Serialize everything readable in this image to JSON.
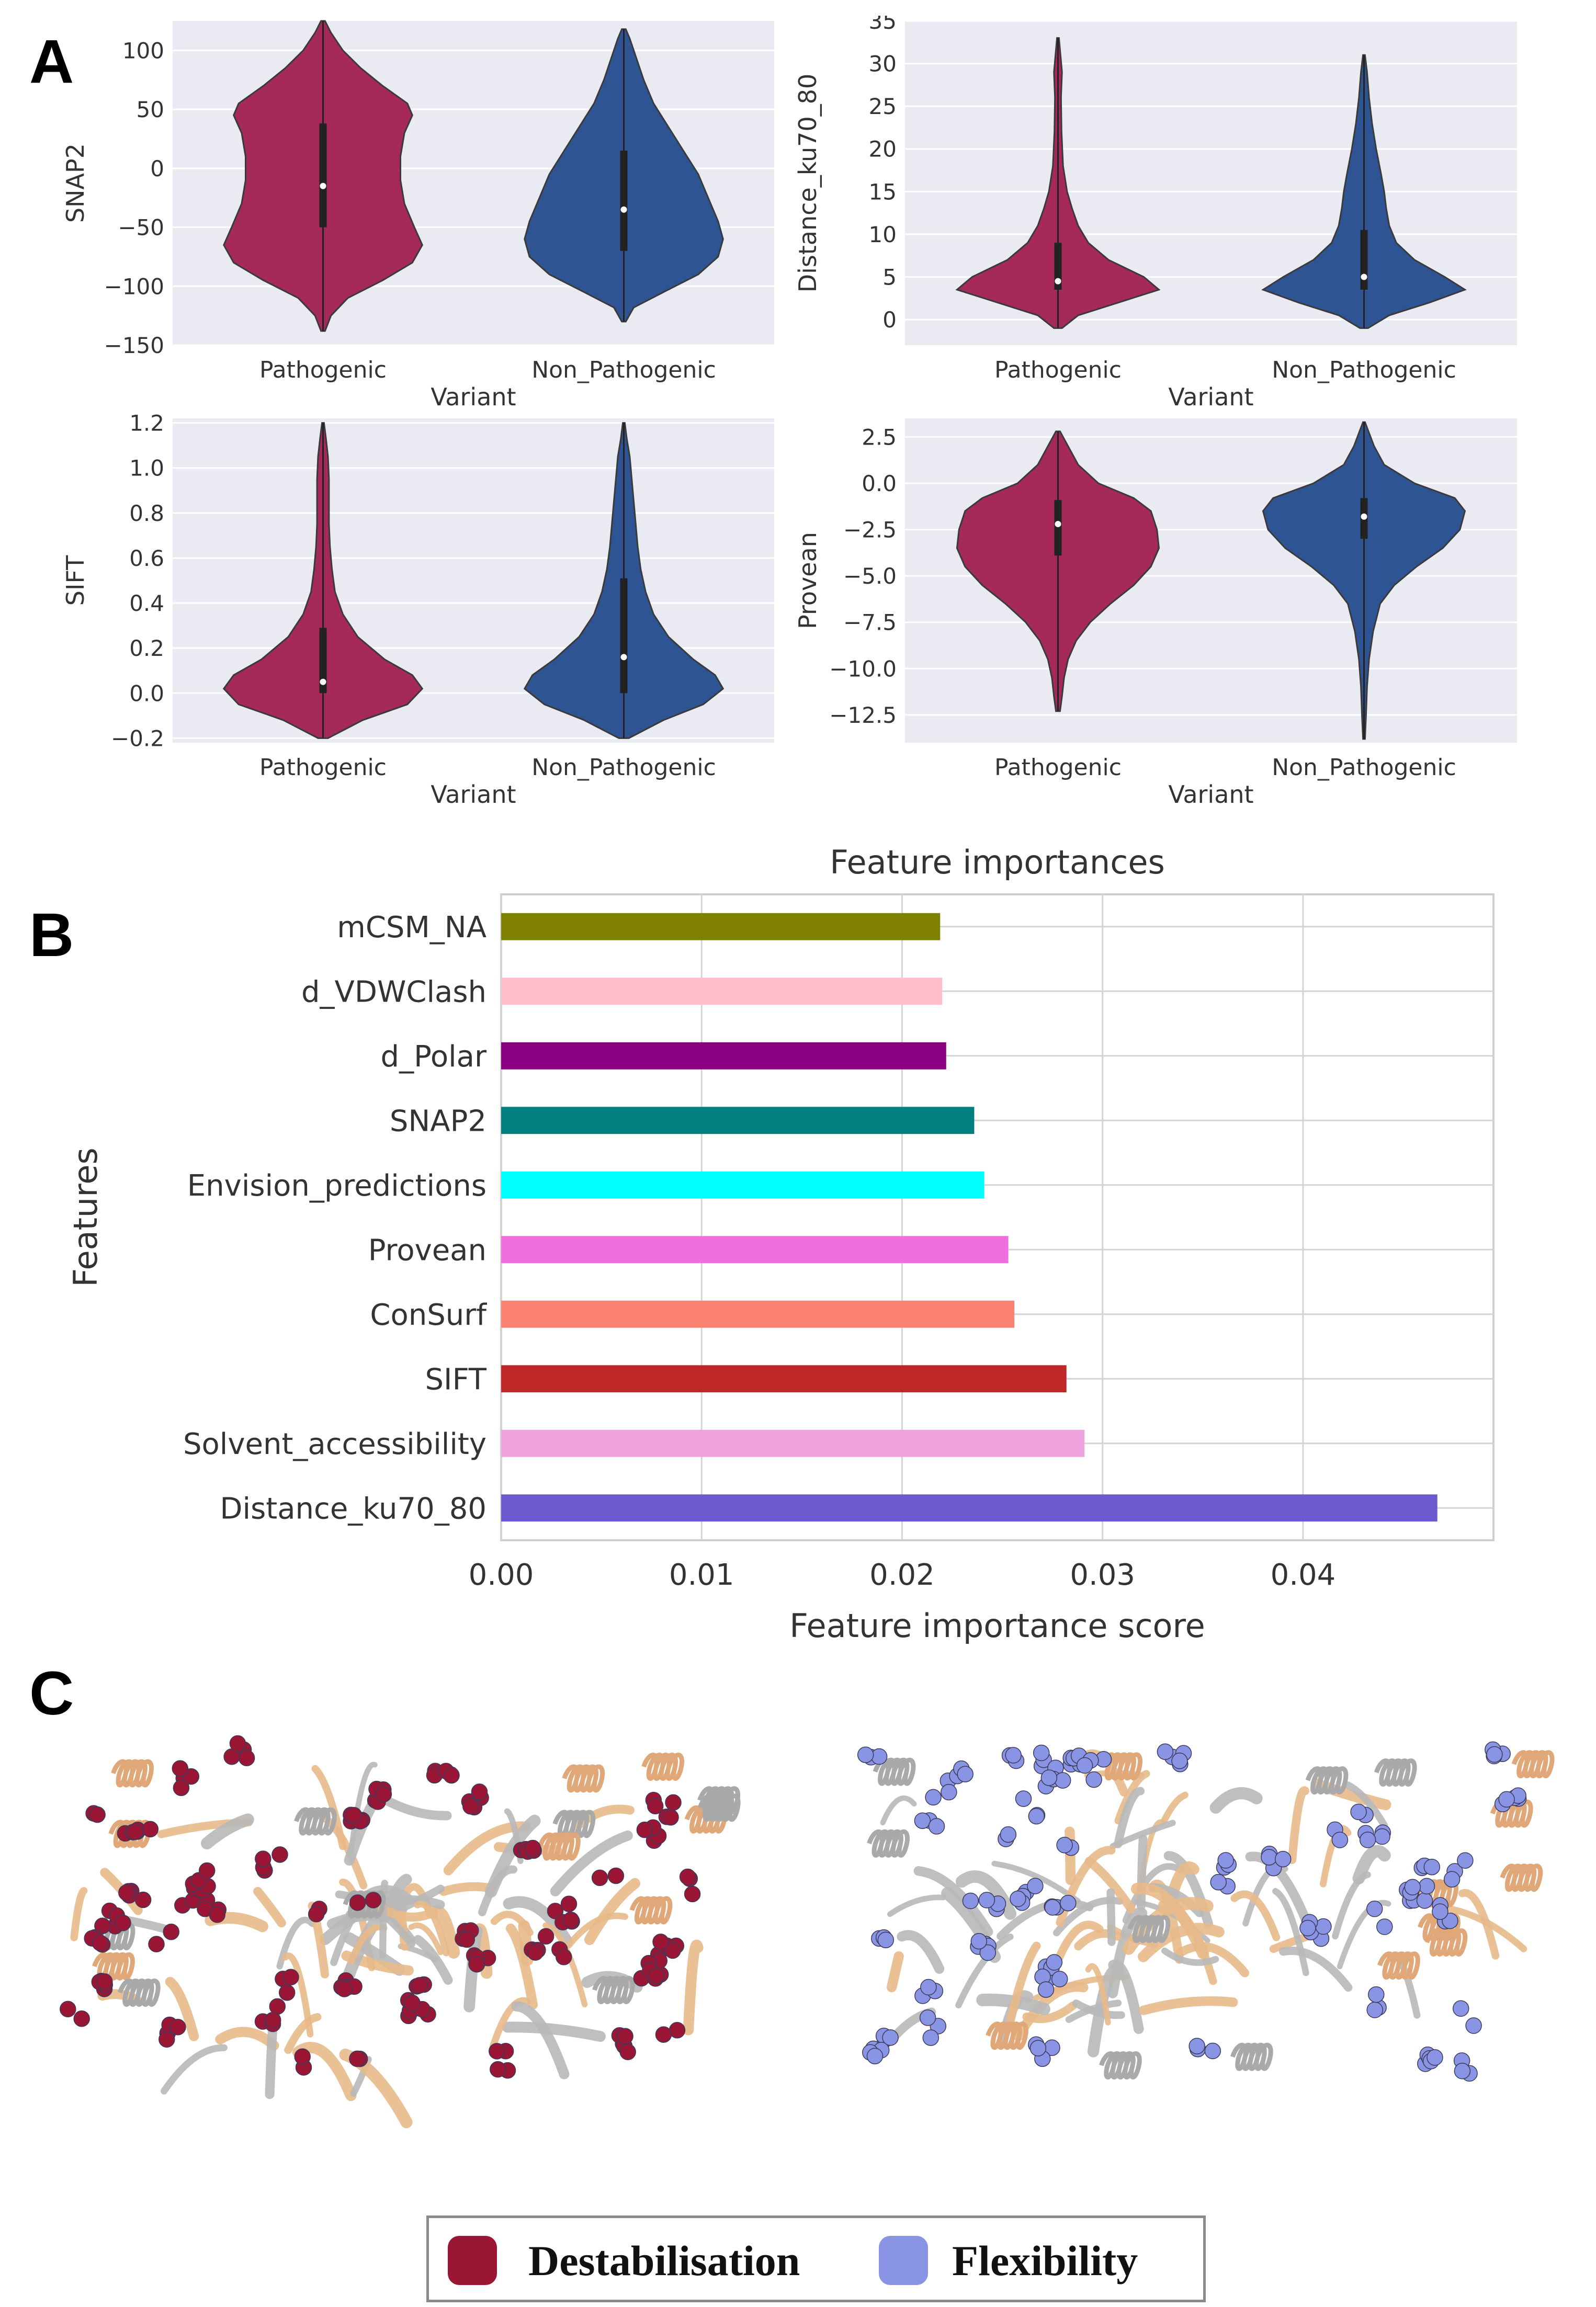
{
  "figure": {
    "panel_letters": [
      "A",
      "B",
      "C"
    ]
  },
  "chart_data": [
    {
      "type": "violin",
      "panel": "A",
      "ylabel": "SNAP2",
      "xlabel": "Variant",
      "categories": [
        "Pathogenic",
        "Non_Pathogenic"
      ],
      "ylim": [
        -150,
        125
      ],
      "yticks": [
        -150,
        -100,
        -50,
        0,
        50,
        100
      ],
      "ytick_labels": [
        "−150",
        "−100",
        "−50",
        "0",
        "50",
        "100"
      ],
      "series": [
        {
          "name": "Pathogenic",
          "color": "#a52a5a",
          "min": -138,
          "max": 125,
          "q1": -50,
          "median": -15,
          "q3": 38,
          "density": [
            [
              -138,
              0.02
            ],
            [
              -125,
              0.08
            ],
            [
              -110,
              0.25
            ],
            [
              -95,
              0.6
            ],
            [
              -80,
              0.9
            ],
            [
              -65,
              1.0
            ],
            [
              -50,
              0.92
            ],
            [
              -30,
              0.82
            ],
            [
              -10,
              0.78
            ],
            [
              10,
              0.78
            ],
            [
              30,
              0.82
            ],
            [
              45,
              0.9
            ],
            [
              55,
              0.85
            ],
            [
              70,
              0.6
            ],
            [
              85,
              0.38
            ],
            [
              100,
              0.2
            ],
            [
              115,
              0.08
            ],
            [
              125,
              0.02
            ]
          ]
        },
        {
          "name": "Non_Pathogenic",
          "color": "#2f5494",
          "min": -130,
          "max": 118,
          "q1": -70,
          "median": -35,
          "q3": 15,
          "density": [
            [
              -130,
              0.02
            ],
            [
              -118,
              0.1
            ],
            [
              -105,
              0.4
            ],
            [
              -90,
              0.75
            ],
            [
              -75,
              0.95
            ],
            [
              -60,
              1.0
            ],
            [
              -45,
              0.95
            ],
            [
              -25,
              0.85
            ],
            [
              -5,
              0.75
            ],
            [
              15,
              0.6
            ],
            [
              35,
              0.45
            ],
            [
              55,
              0.3
            ],
            [
              75,
              0.2
            ],
            [
              95,
              0.12
            ],
            [
              110,
              0.06
            ],
            [
              118,
              0.02
            ]
          ]
        }
      ]
    },
    {
      "type": "violin",
      "panel": "A",
      "ylabel": "Distance_ku70_80",
      "xlabel": "Variant",
      "categories": [
        "Pathogenic",
        "Non_Pathogenic"
      ],
      "ylim": [
        -3,
        35
      ],
      "yticks": [
        0,
        5,
        10,
        15,
        20,
        25,
        30,
        35
      ],
      "ytick_labels": [
        "0",
        "5",
        "10",
        "15",
        "20",
        "25",
        "30",
        "35"
      ],
      "series": [
        {
          "name": "Pathogenic",
          "color": "#a52a5a",
          "min": -1,
          "max": 33,
          "q1": 3.5,
          "median": 4.5,
          "q3": 9,
          "density": [
            [
              -1,
              0.04
            ],
            [
              0.5,
              0.2
            ],
            [
              2,
              0.6
            ],
            [
              3.5,
              1.0
            ],
            [
              5,
              0.85
            ],
            [
              7,
              0.5
            ],
            [
              9,
              0.3
            ],
            [
              11,
              0.2
            ],
            [
              13,
              0.14
            ],
            [
              15,
              0.09
            ],
            [
              18,
              0.05
            ],
            [
              22,
              0.035
            ],
            [
              26,
              0.03
            ],
            [
              29,
              0.04
            ],
            [
              31,
              0.025
            ],
            [
              33,
              0.01
            ]
          ]
        },
        {
          "name": "Non_Pathogenic",
          "color": "#2f5494",
          "min": -1,
          "max": 31,
          "q1": 3.5,
          "median": 5,
          "q3": 10.5,
          "density": [
            [
              -1,
              0.04
            ],
            [
              0.5,
              0.25
            ],
            [
              2,
              0.65
            ],
            [
              3.5,
              1.0
            ],
            [
              5,
              0.8
            ],
            [
              7,
              0.5
            ],
            [
              9,
              0.32
            ],
            [
              11,
              0.25
            ],
            [
              13,
              0.22
            ],
            [
              15,
              0.2
            ],
            [
              17,
              0.17
            ],
            [
              20,
              0.12
            ],
            [
              23,
              0.08
            ],
            [
              26,
              0.05
            ],
            [
              29,
              0.03
            ],
            [
              31,
              0.01
            ]
          ]
        }
      ]
    },
    {
      "type": "violin",
      "panel": "A",
      "ylabel": "SIFT",
      "xlabel": "Variant",
      "categories": [
        "Pathogenic",
        "Non_Pathogenic"
      ],
      "ylim": [
        -0.22,
        1.22
      ],
      "yticks": [
        -0.2,
        0.0,
        0.2,
        0.4,
        0.6,
        0.8,
        1.0,
        1.2
      ],
      "ytick_labels": [
        "−0.2",
        "0.0",
        "0.2",
        "0.4",
        "0.6",
        "0.8",
        "1.0",
        "1.2"
      ],
      "series": [
        {
          "name": "Pathogenic",
          "color": "#a52a5a",
          "min": -0.2,
          "max": 1.2,
          "q1": 0.0,
          "median": 0.05,
          "q3": 0.29,
          "density": [
            [
              -0.2,
              0.05
            ],
            [
              -0.12,
              0.4
            ],
            [
              -0.05,
              0.85
            ],
            [
              0.02,
              1.0
            ],
            [
              0.08,
              0.9
            ],
            [
              0.15,
              0.62
            ],
            [
              0.25,
              0.35
            ],
            [
              0.35,
              0.2
            ],
            [
              0.45,
              0.12
            ],
            [
              0.55,
              0.09
            ],
            [
              0.65,
              0.07
            ],
            [
              0.75,
              0.06
            ],
            [
              0.85,
              0.06
            ],
            [
              0.95,
              0.06
            ],
            [
              1.05,
              0.05
            ],
            [
              1.13,
              0.03
            ],
            [
              1.2,
              0.01
            ]
          ]
        },
        {
          "name": "Non_Pathogenic",
          "color": "#2f5494",
          "min": -0.2,
          "max": 1.2,
          "q1": 0.0,
          "median": 0.16,
          "q3": 0.51,
          "density": [
            [
              -0.2,
              0.05
            ],
            [
              -0.12,
              0.4
            ],
            [
              -0.05,
              0.8
            ],
            [
              0.02,
              1.0
            ],
            [
              0.08,
              0.92
            ],
            [
              0.15,
              0.7
            ],
            [
              0.25,
              0.45
            ],
            [
              0.35,
              0.3
            ],
            [
              0.45,
              0.22
            ],
            [
              0.55,
              0.17
            ],
            [
              0.65,
              0.14
            ],
            [
              0.75,
              0.12
            ],
            [
              0.85,
              0.1
            ],
            [
              0.95,
              0.08
            ],
            [
              1.05,
              0.06
            ],
            [
              1.13,
              0.03
            ],
            [
              1.2,
              0.01
            ]
          ]
        }
      ]
    },
    {
      "type": "violin",
      "panel": "A",
      "ylabel": "Provean",
      "xlabel": "Variant",
      "categories": [
        "Pathogenic",
        "Non_Pathogenic"
      ],
      "ylim": [
        -14,
        3.5
      ],
      "yticks": [
        -12.5,
        -10.0,
        -7.5,
        -5.0,
        -2.5,
        0.0,
        2.5
      ],
      "ytick_labels": [
        "−12.5",
        "−10.0",
        "−7.5",
        "−5.0",
        "−2.5",
        "0.0",
        "2.5"
      ],
      "series": [
        {
          "name": "Pathogenic",
          "color": "#a52a5a",
          "min": -12.3,
          "max": 2.8,
          "q1": -3.9,
          "median": -2.2,
          "q3": -0.9,
          "density": [
            [
              -12.3,
              0.02
            ],
            [
              -11.5,
              0.04
            ],
            [
              -10.5,
              0.06
            ],
            [
              -9.5,
              0.1
            ],
            [
              -8.5,
              0.18
            ],
            [
              -7.5,
              0.32
            ],
            [
              -6.5,
              0.52
            ],
            [
              -5.5,
              0.75
            ],
            [
              -4.5,
              0.92
            ],
            [
              -3.5,
              1.0
            ],
            [
              -2.5,
              0.98
            ],
            [
              -1.5,
              0.92
            ],
            [
              -0.8,
              0.75
            ],
            [
              0,
              0.4
            ],
            [
              1,
              0.2
            ],
            [
              2,
              0.1
            ],
            [
              2.8,
              0.02
            ]
          ]
        },
        {
          "name": "Non_Pathogenic",
          "color": "#2f5494",
          "min": -13.8,
          "max": 3.3,
          "q1": -3.0,
          "median": -1.8,
          "q3": -0.8,
          "density": [
            [
              -13.8,
              0.01
            ],
            [
              -12.5,
              0.02
            ],
            [
              -11,
              0.03
            ],
            [
              -9.5,
              0.05
            ],
            [
              -8,
              0.09
            ],
            [
              -6.5,
              0.16
            ],
            [
              -5.5,
              0.3
            ],
            [
              -4.5,
              0.52
            ],
            [
              -3.5,
              0.78
            ],
            [
              -2.5,
              0.95
            ],
            [
              -1.5,
              1.0
            ],
            [
              -0.8,
              0.9
            ],
            [
              0,
              0.5
            ],
            [
              1,
              0.2
            ],
            [
              2,
              0.1
            ],
            [
              3.3,
              0.01
            ]
          ]
        }
      ]
    },
    {
      "type": "bar",
      "orientation": "horizontal",
      "panel": "B",
      "title": "Feature importances",
      "xlabel": "Feature importance score",
      "ylabel": "Features",
      "xlim": [
        0,
        0.0495
      ],
      "xticks": [
        0.0,
        0.01,
        0.02,
        0.03,
        0.04
      ],
      "xtick_labels": [
        "0.00",
        "0.01",
        "0.02",
        "0.03",
        "0.04"
      ],
      "categories": [
        "mCSM_NA",
        "d_VDWClash",
        "d_Polar",
        "SNAP2",
        "Envision_predictions",
        "Provean",
        "ConSurf",
        "SIFT",
        "Solvent_accessibility",
        "Distance_ku70_80"
      ],
      "values": [
        0.0219,
        0.022,
        0.0222,
        0.0236,
        0.0241,
        0.0253,
        0.0256,
        0.0282,
        0.0291,
        0.0467
      ],
      "colors": [
        "#808000",
        "#ffc0cb",
        "#8b0080",
        "#008080",
        "#00ffff",
        "#f06ee0",
        "#fa8072",
        "#c02828",
        "#eea2de",
        "#6a5acd"
      ]
    }
  ],
  "structure_panel": {
    "legend": [
      {
        "label": "Destabilisation",
        "color": "#9b1535"
      },
      {
        "label": "Flexibility",
        "color": "#8a94e4"
      }
    ]
  }
}
